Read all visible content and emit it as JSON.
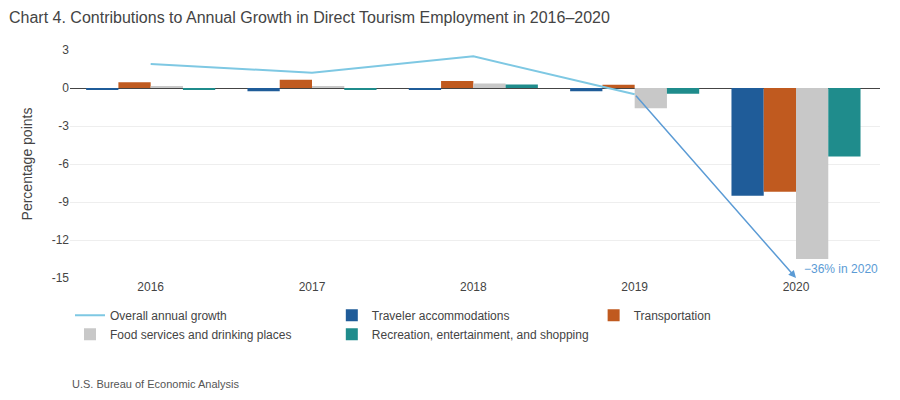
{
  "chart_data": {
    "type": "bar",
    "title": "Chart 4. Contributions to Annual Growth in Direct Tourism Employment in 2016–2020",
    "ylabel": "Percentage points",
    "source": "U.S. Bureau of Economic Analysis",
    "categories": [
      "2016",
      "2017",
      "2018",
      "2019",
      "2020"
    ],
    "series": [
      {
        "name": "Traveler accommodations",
        "color": "#1F5C99",
        "values": [
          -0.15,
          -0.25,
          -0.15,
          -0.25,
          -8.5
        ]
      },
      {
        "name": "Transportation",
        "color": "#C05A1F",
        "values": [
          0.45,
          0.65,
          0.55,
          0.25,
          -8.2
        ]
      },
      {
        "name": "Food services and drinking places",
        "color": "#C8C8C8",
        "values": [
          0.1,
          0.08,
          0.35,
          -1.6,
          -13.5
        ]
      },
      {
        "name": "Recreation, entertainment, and shopping",
        "color": "#1F8C8C",
        "values": [
          -0.08,
          -0.12,
          0.28,
          -0.45,
          -5.4
        ]
      },
      {
        "name": "Overall annual growth",
        "type": "line",
        "color": "#7EC8E3",
        "values": [
          1.9,
          1.2,
          2.5,
          -0.5,
          null
        ]
      }
    ],
    "ylim": [
      -15,
      3
    ],
    "yticks": [
      3,
      0,
      -3,
      -6,
      -9,
      -12,
      -15
    ],
    "grid": true,
    "legend": "bottom",
    "annotations": [
      {
        "text": "−36% in 2020",
        "color": "#5B9BD5"
      }
    ]
  }
}
